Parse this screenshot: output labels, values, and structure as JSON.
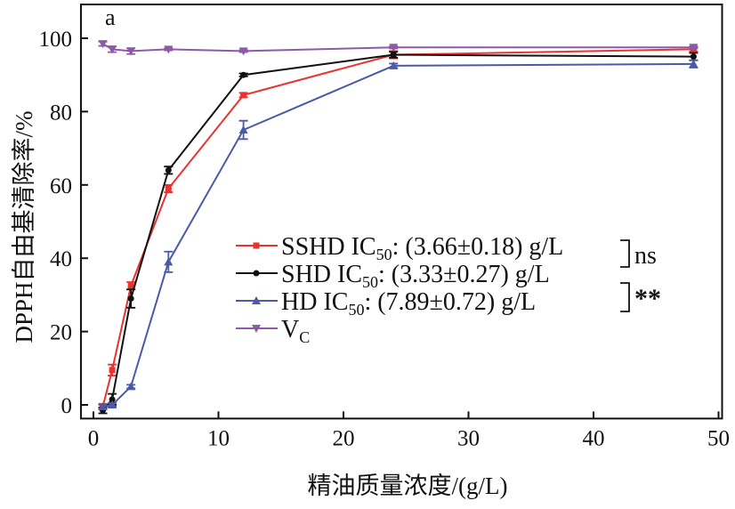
{
  "chart_data": {
    "type": "line",
    "panel_label": "a",
    "xlabel": "精油质量浓度/(g/L)",
    "ylabel": "DPPH自由基清除率/%",
    "xlim": [
      -1,
      50
    ],
    "ylim": [
      -3,
      110
    ],
    "xticks": [
      0,
      10,
      20,
      30,
      40,
      50
    ],
    "yticks": [
      0,
      20,
      40,
      60,
      80,
      100
    ],
    "x": [
      0.75,
      1.5,
      3,
      6,
      12,
      24,
      48
    ],
    "series": [
      {
        "name": "SSHD",
        "label": "SSHD IC50: (3.66±0.18) g/L",
        "label_main": "SSHD IC",
        "label_sub": "50",
        "label_rest": ": (3.66±0.18) g/L",
        "color": "#e8332e",
        "marker": "square",
        "values": [
          -0.5,
          9.5,
          32.5,
          59,
          84.5,
          95.5,
          97
        ],
        "errors": [
          0.8,
          1.5,
          1,
          1,
          0.6,
          1,
          0.6
        ]
      },
      {
        "name": "SHD",
        "label": "SHD IC50: (3.33±0.27) g/L",
        "label_main": "SHD   IC",
        "label_sub": "50",
        "label_rest": ": (3.33±0.27) g/L",
        "color": "#111111",
        "marker": "circle",
        "values": [
          -1.5,
          1.5,
          29,
          64,
          90,
          95.5,
          95
        ],
        "errors": [
          0.8,
          1.5,
          2.5,
          1,
          0.4,
          0.8,
          1
        ]
      },
      {
        "name": "HD",
        "label": "HD IC50: (7.89±0.72) g/L",
        "label_main": "HD      IC",
        "label_sub": "50",
        "label_rest": ": (7.89±0.72) g/L",
        "color": "#4a5aa8",
        "marker": "triangle-up",
        "values": [
          -0.5,
          0,
          5,
          39,
          75,
          92.5,
          93
        ],
        "errors": [
          0.5,
          0.5,
          0.5,
          2.8,
          2.5,
          0.6,
          1
        ]
      },
      {
        "name": "VC",
        "label": "VC",
        "label_main": "V",
        "label_sub": "C",
        "label_rest": "",
        "color": "#8e5aa8",
        "marker": "triangle-down",
        "values": [
          98.5,
          97,
          96.5,
          97,
          96.5,
          97.5,
          97.5
        ],
        "errors": [
          0.6,
          0.8,
          0.8,
          0.3,
          0.3,
          0.3,
          0.3
        ]
      }
    ],
    "annotations": [
      {
        "text": "ns",
        "between": [
          "SSHD",
          "SHD"
        ]
      },
      {
        "text": "**",
        "between": [
          "SHD",
          "HD"
        ]
      }
    ]
  }
}
